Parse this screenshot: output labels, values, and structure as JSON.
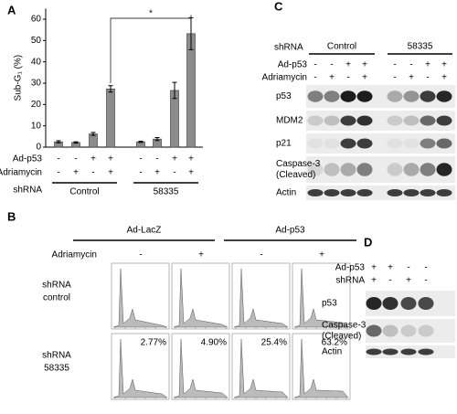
{
  "chart_data": {
    "type": "bar",
    "panel": "A",
    "ylabel": "Sub-G₁ (%)",
    "annotation": "*",
    "categories": [
      null,
      null,
      null,
      null,
      null,
      null,
      null,
      null
    ],
    "values": [
      2.5,
      2.2,
      6.2,
      27.3,
      2.5,
      3.8,
      26.6,
      53.2
    ],
    "errors": [
      0.5,
      0.3,
      0.7,
      1.5,
      0.3,
      0.7,
      3.8,
      7.5
    ],
    "color": "#8c8c8c",
    "ylim": [
      0,
      65
    ],
    "yticks": [
      0,
      10,
      20,
      30,
      40,
      50,
      60
    ],
    "grid": false,
    "conditions": [
      {
        "label": "Ad-p53",
        "signs": [
          "-",
          "-",
          "+",
          "+",
          "-",
          "-",
          "+",
          "+"
        ]
      },
      {
        "label": "Adriamycin",
        "signs": [
          "-",
          "+",
          "-",
          "+",
          "-",
          "+",
          "-",
          "+"
        ]
      }
    ],
    "group_label": "shRNA",
    "groups": [
      "Control",
      "58335"
    ]
  },
  "panel_b": {
    "panel": "B",
    "columns": [
      "Ad-LacZ",
      "Ad-p53"
    ],
    "treatment": "Adriamycin",
    "treatment_signs": [
      "-",
      "+",
      "-",
      "+"
    ],
    "rows": [
      [
        "shRNA",
        "control"
      ],
      [
        "shRNA",
        "58335"
      ]
    ],
    "percentages": [
      "2.77%",
      "4.90%",
      "25.4%",
      "63.2%"
    ]
  },
  "panel_c": {
    "panel": "C",
    "group_label": "shRNA",
    "groups": [
      "Control",
      "58335"
    ],
    "conditions": [
      {
        "label": "Ad-p53",
        "signs": [
          "-",
          "-",
          "+",
          "+",
          "-",
          "-",
          "+",
          "+"
        ]
      },
      {
        "label": "Adriamycin",
        "signs": [
          "-",
          "+",
          "-",
          "+",
          "-",
          "+",
          "-",
          "+"
        ]
      }
    ],
    "blots": [
      [
        "p53"
      ],
      [
        "MDM2"
      ],
      [
        "p21"
      ],
      [
        "Caspase-3",
        "(Cleaved)"
      ],
      [
        "Actin"
      ]
    ]
  },
  "panel_d": {
    "panel": "D",
    "conditions": [
      {
        "label": "Ad-p53",
        "signs": [
          "+",
          "+",
          "-",
          "-"
        ]
      },
      {
        "label": "shRNA",
        "signs": [
          "+",
          "-",
          "+",
          "-"
        ]
      }
    ],
    "blots": [
      [
        "p53"
      ],
      [
        "Caspase-3",
        "(Cleaved)"
      ],
      [
        "Actin"
      ]
    ]
  }
}
